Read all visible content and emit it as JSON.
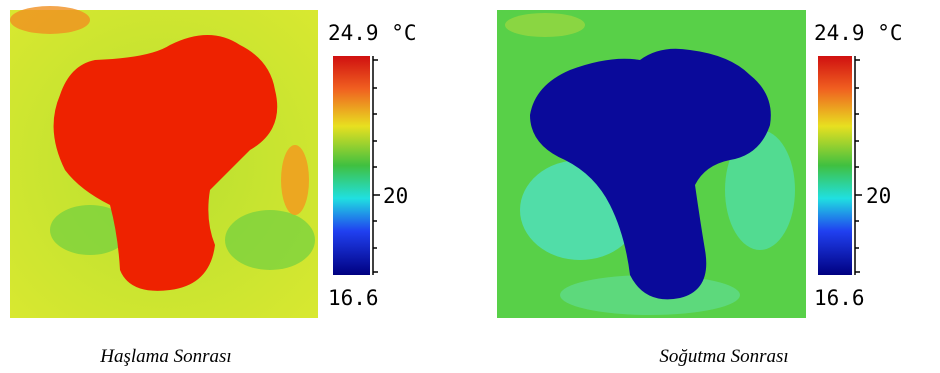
{
  "panels": [
    {
      "colorbar": {
        "max": "24.9 °C",
        "mid": "20",
        "min": "16.6"
      },
      "caption": "Haşlama Sonrası"
    },
    {
      "colorbar": {
        "max": "24.9 °C",
        "mid": "20",
        "min": "16.6"
      },
      "caption": "Soğutma Sonrası"
    }
  ]
}
